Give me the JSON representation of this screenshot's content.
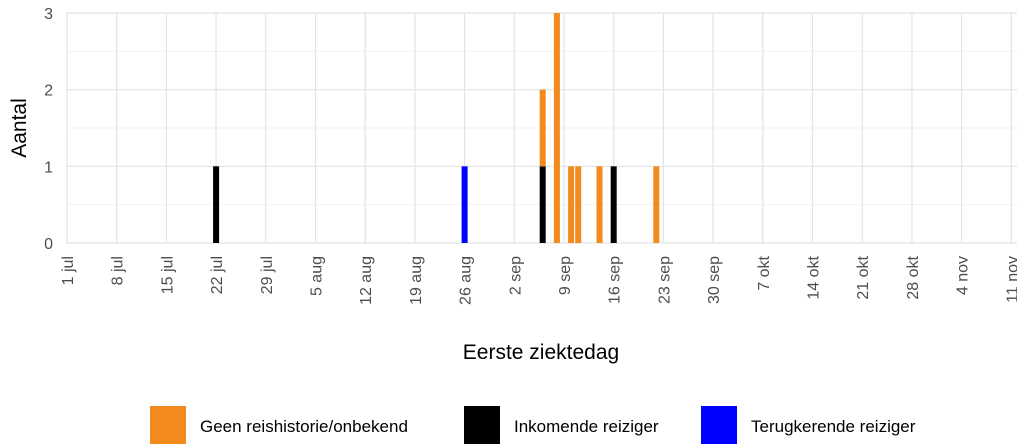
{
  "chart_data": {
    "type": "bar",
    "stacked": true,
    "xlabel": "Eerste ziektedag",
    "ylabel": "Aantal",
    "ylim": [
      0,
      3
    ],
    "yticks": [
      0,
      1,
      2,
      3
    ],
    "xlim": [
      "2020-07-01",
      "2020-11-11"
    ],
    "xticks": [
      {
        "date": "2020-07-01",
        "label": "1 jul"
      },
      {
        "date": "2020-07-08",
        "label": "8 jul"
      },
      {
        "date": "2020-07-15",
        "label": "15 jul"
      },
      {
        "date": "2020-07-22",
        "label": "22 jul"
      },
      {
        "date": "2020-07-29",
        "label": "29 jul"
      },
      {
        "date": "2020-08-05",
        "label": "5 aug"
      },
      {
        "date": "2020-08-12",
        "label": "12 aug"
      },
      {
        "date": "2020-08-19",
        "label": "19 aug"
      },
      {
        "date": "2020-08-26",
        "label": "26 aug"
      },
      {
        "date": "2020-09-02",
        "label": "2 sep"
      },
      {
        "date": "2020-09-09",
        "label": "9 sep"
      },
      {
        "date": "2020-09-16",
        "label": "16 sep"
      },
      {
        "date": "2020-09-23",
        "label": "23 sep"
      },
      {
        "date": "2020-09-30",
        "label": "30 sep"
      },
      {
        "date": "2020-10-07",
        "label": "7 okt"
      },
      {
        "date": "2020-10-14",
        "label": "14 okt"
      },
      {
        "date": "2020-10-21",
        "label": "21 okt"
      },
      {
        "date": "2020-10-28",
        "label": "28 okt"
      },
      {
        "date": "2020-11-04",
        "label": "4 nov"
      },
      {
        "date": "2020-11-11",
        "label": "11 nov"
      }
    ],
    "grid": true,
    "legend_position": "bottom",
    "series": [
      {
        "name": "Geen reishistorie/onbekend",
        "color": "#f28a1e",
        "points": [
          {
            "x": "2020-09-06",
            "y": 1
          },
          {
            "x": "2020-09-08",
            "y": 3
          },
          {
            "x": "2020-09-10",
            "y": 1
          },
          {
            "x": "2020-09-11",
            "y": 1
          },
          {
            "x": "2020-09-14",
            "y": 1
          },
          {
            "x": "2020-09-22",
            "y": 1
          }
        ]
      },
      {
        "name": "Inkomende reiziger",
        "color": "#000000",
        "points": [
          {
            "x": "2020-07-22",
            "y": 1
          },
          {
            "x": "2020-09-06",
            "y": 1
          },
          {
            "x": "2020-09-16",
            "y": 1
          }
        ]
      },
      {
        "name": "Terugkerende reiziger",
        "color": "#0000ff",
        "points": [
          {
            "x": "2020-08-26",
            "y": 1
          }
        ]
      }
    ]
  }
}
